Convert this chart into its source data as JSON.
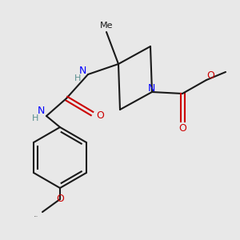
{
  "bg_color": "#e8e8e8",
  "bond_color": "#1a1a1a",
  "N_color": "#0000ff",
  "O_color": "#cc0000",
  "H_color": "#5a9090",
  "C_color": "#1a1a1a",
  "figsize": [
    3.0,
    3.0
  ],
  "dpi": 100,
  "xlim": [
    0,
    300
  ],
  "ylim": [
    0,
    300
  ]
}
